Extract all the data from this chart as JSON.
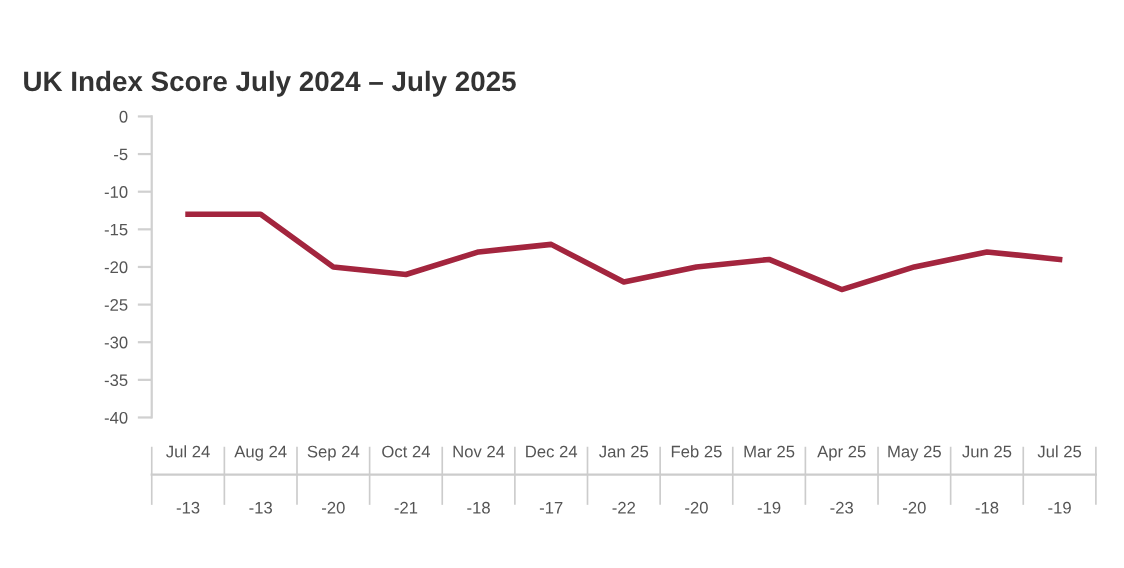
{
  "chart_data": {
    "type": "line",
    "title": "UK Index Score July 2024 – July 2025",
    "categories": [
      "Jul 24",
      "Aug 24",
      "Sep 24",
      "Oct 24",
      "Nov 24",
      "Dec 24",
      "Jan 25",
      "Feb 25",
      "Mar 25",
      "Apr 25",
      "May 25",
      "Jun 25",
      "Jul 25"
    ],
    "series": [
      {
        "color": "#a3253e",
        "values": [
          -13,
          -13,
          -20,
          -21,
          -18,
          -17,
          -22,
          -20,
          -19,
          -23,
          -20,
          -18,
          -19
        ]
      }
    ],
    "ylim": [
      -40,
      0
    ],
    "yticks": [
      -40,
      -35,
      -30,
      -25,
      -20,
      -15,
      -10,
      -5,
      0
    ],
    "grid": false,
    "legend": false,
    "marker": "none",
    "line_style": "solid",
    "data_labels": true
  }
}
